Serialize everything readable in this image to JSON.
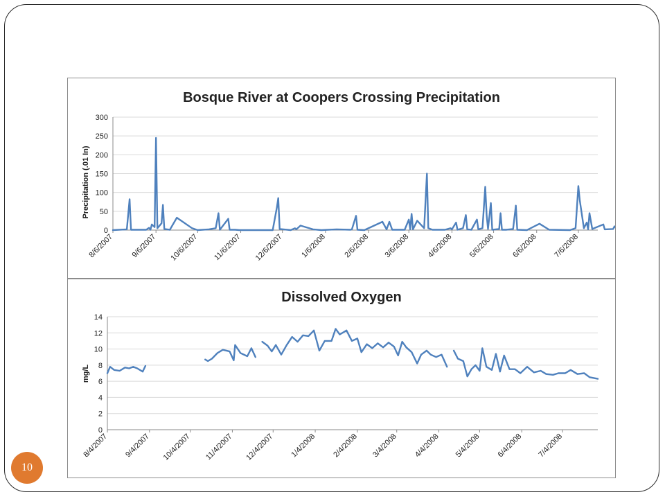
{
  "slide": {
    "page_number": "10"
  },
  "chart_data": [
    {
      "type": "line",
      "title": "Bosque River at Coopers Crossing Precipitation",
      "xlabel": "",
      "ylabel": "Precipitation (.01 In)",
      "ylim": [
        0,
        300
      ],
      "yticks": [
        0,
        50,
        100,
        150,
        200,
        250,
        300
      ],
      "grid": true,
      "legend": "none",
      "color": "#4f81bd",
      "xlim": [
        "2007-08-06",
        "2008-07-20"
      ],
      "x_tick_labels": [
        "8/6/2007",
        "9/6/2007",
        "10/6/2007",
        "11/6/2007",
        "12/6/2007",
        "1/6/2008",
        "2/6/2008",
        "3/6/2008",
        "4/6/2008",
        "5/6/2008",
        "6/6/2008",
        "7/6/2008"
      ],
      "x_tick_dates": [
        "2007-08-06",
        "2007-09-06",
        "2007-10-06",
        "2007-11-06",
        "2007-12-06",
        "2008-01-06",
        "2008-02-06",
        "2008-03-06",
        "2008-04-06",
        "2008-05-06",
        "2008-06-06",
        "2008-07-06"
      ],
      "points": [
        [
          "2007-08-06",
          0
        ],
        [
          "2007-08-16",
          2
        ],
        [
          "2007-08-18",
          82
        ],
        [
          "2007-08-19",
          1
        ],
        [
          "2007-08-30",
          1
        ],
        [
          "2007-09-01",
          6
        ],
        [
          "2007-09-02",
          1
        ],
        [
          "2007-09-03",
          15
        ],
        [
          "2007-09-05",
          8
        ],
        [
          "2007-09-06",
          245
        ],
        [
          "2007-09-07",
          5
        ],
        [
          "2007-09-10",
          18
        ],
        [
          "2007-09-11",
          67
        ],
        [
          "2007-09-12",
          3
        ],
        [
          "2007-09-16",
          1
        ],
        [
          "2007-09-21",
          33
        ],
        [
          "2007-10-02",
          5
        ],
        [
          "2007-10-06",
          0
        ],
        [
          "2007-10-14",
          2
        ],
        [
          "2007-10-19",
          5
        ],
        [
          "2007-10-21",
          45
        ],
        [
          "2007-10-22",
          1
        ],
        [
          "2007-10-28",
          30
        ],
        [
          "2007-10-29",
          1
        ],
        [
          "2007-11-02",
          1
        ],
        [
          "2007-11-05",
          0
        ],
        [
          "2007-11-29",
          0
        ],
        [
          "2007-12-02",
          60
        ],
        [
          "2007-12-03",
          85
        ],
        [
          "2007-12-04",
          3
        ],
        [
          "2007-12-12",
          0
        ],
        [
          "2007-12-15",
          5
        ],
        [
          "2007-12-16",
          2
        ],
        [
          "2007-12-19",
          12
        ],
        [
          "2007-12-28",
          2
        ],
        [
          "2008-01-03",
          0
        ],
        [
          "2008-01-14",
          2
        ],
        [
          "2008-01-24",
          1
        ],
        [
          "2008-01-25",
          2
        ],
        [
          "2008-01-28",
          38
        ],
        [
          "2008-01-29",
          1
        ],
        [
          "2008-02-03",
          0
        ],
        [
          "2008-02-16",
          22
        ],
        [
          "2008-02-19",
          2
        ],
        [
          "2008-02-21",
          22
        ],
        [
          "2008-02-23",
          1
        ],
        [
          "2008-03-03",
          1
        ],
        [
          "2008-03-06",
          28
        ],
        [
          "2008-03-07",
          2
        ],
        [
          "2008-03-08",
          43
        ],
        [
          "2008-03-09",
          2
        ],
        [
          "2008-03-12",
          25
        ],
        [
          "2008-03-17",
          5
        ],
        [
          "2008-03-19",
          150
        ],
        [
          "2008-03-20",
          5
        ],
        [
          "2008-03-23",
          1
        ],
        [
          "2008-04-01",
          1
        ],
        [
          "2008-04-05",
          5
        ],
        [
          "2008-04-06",
          2
        ],
        [
          "2008-04-09",
          20
        ],
        [
          "2008-04-10",
          1
        ],
        [
          "2008-04-14",
          5
        ],
        [
          "2008-04-16",
          40
        ],
        [
          "2008-04-17",
          2
        ],
        [
          "2008-04-20",
          1
        ],
        [
          "2008-04-24",
          28
        ],
        [
          "2008-04-25",
          2
        ],
        [
          "2008-04-28",
          5
        ],
        [
          "2008-04-30",
          115
        ],
        [
          "2008-05-01",
          40
        ],
        [
          "2008-05-02",
          3
        ],
        [
          "2008-05-04",
          72
        ],
        [
          "2008-05-05",
          1
        ],
        [
          "2008-05-10",
          3
        ],
        [
          "2008-05-11",
          45
        ],
        [
          "2008-05-12",
          1
        ],
        [
          "2008-05-15",
          1
        ],
        [
          "2008-05-20",
          3
        ],
        [
          "2008-05-22",
          65
        ],
        [
          "2008-05-23",
          1
        ],
        [
          "2008-05-30",
          0
        ],
        [
          "2008-06-08",
          17
        ],
        [
          "2008-06-15",
          1
        ],
        [
          "2008-06-30",
          0
        ],
        [
          "2008-07-04",
          5
        ],
        [
          "2008-07-06",
          117
        ],
        [
          "2008-07-07",
          80
        ],
        [
          "2008-07-10",
          5
        ],
        [
          "2008-07-12",
          20
        ],
        [
          "2008-07-13",
          2
        ],
        [
          "2008-07-14",
          45
        ],
        [
          "2008-07-16",
          3
        ],
        [
          "2008-07-24",
          15
        ],
        [
          "2008-07-25",
          2
        ],
        [
          "2008-07-31",
          3
        ],
        [
          "2008-08-01",
          10
        ],
        [
          "2008-08-03",
          2
        ]
      ]
    },
    {
      "type": "line",
      "title": "Dissolved Oxygen",
      "xlabel": "",
      "ylabel": "mg/L",
      "ylim": [
        0,
        14
      ],
      "yticks": [
        0,
        2,
        4,
        6,
        8,
        10,
        12,
        14
      ],
      "grid": true,
      "legend": "none",
      "color": "#4f81bd",
      "xlim": [
        "2007-08-04",
        "2008-07-30"
      ],
      "x_tick_labels": [
        "8/4/2007",
        "9/4/2007",
        "10/4/2007",
        "11/4/2007",
        "12/4/2007",
        "1/4/2008",
        "2/4/2008",
        "3/4/2008",
        "4/4/2008",
        "5/4/2008",
        "6/4/2008",
        "7/4/2008"
      ],
      "x_tick_dates": [
        "2007-08-04",
        "2007-09-04",
        "2007-10-04",
        "2007-11-04",
        "2007-12-04",
        "2008-01-04",
        "2008-02-04",
        "2008-03-04",
        "2008-04-04",
        "2008-05-04",
        "2008-06-04",
        "2008-07-04"
      ],
      "segments": [
        [
          [
            "2007-08-04",
            7.0
          ],
          [
            "2007-08-06",
            7.8
          ],
          [
            "2007-08-09",
            7.4
          ],
          [
            "2007-08-13",
            7.3
          ],
          [
            "2007-08-17",
            7.7
          ],
          [
            "2007-08-20",
            7.6
          ],
          [
            "2007-08-23",
            7.8
          ],
          [
            "2007-08-26",
            7.6
          ],
          [
            "2007-08-30",
            7.2
          ],
          [
            "2007-09-01",
            7.9
          ]
        ],
        [
          [
            "2007-10-15",
            8.7
          ],
          [
            "2007-10-17",
            8.5
          ],
          [
            "2007-10-20",
            8.8
          ],
          [
            "2007-10-24",
            9.5
          ],
          [
            "2007-10-28",
            9.9
          ],
          [
            "2007-11-02",
            9.7
          ],
          [
            "2007-11-05",
            8.6
          ],
          [
            "2007-11-06",
            10.5
          ],
          [
            "2007-11-10",
            9.5
          ],
          [
            "2007-11-15",
            9.1
          ],
          [
            "2007-11-18",
            10.1
          ],
          [
            "2007-11-21",
            9.0
          ]
        ],
        [
          [
            "2007-11-26",
            10.9
          ],
          [
            "2007-11-30",
            10.4
          ],
          [
            "2007-12-03",
            9.7
          ],
          [
            "2007-12-06",
            10.5
          ],
          [
            "2007-12-10",
            9.3
          ],
          [
            "2007-12-14",
            10.5
          ],
          [
            "2007-12-18",
            11.5
          ],
          [
            "2007-12-22",
            10.9
          ],
          [
            "2007-12-26",
            11.7
          ],
          [
            "2007-12-30",
            11.6
          ],
          [
            "2008-01-03",
            12.3
          ],
          [
            "2008-01-07",
            9.8
          ],
          [
            "2008-01-11",
            11.0
          ],
          [
            "2008-01-16",
            11.0
          ],
          [
            "2008-01-19",
            12.5
          ],
          [
            "2008-01-22",
            11.8
          ],
          [
            "2008-01-27",
            12.3
          ],
          [
            "2008-01-31",
            11.0
          ],
          [
            "2008-02-04",
            11.3
          ],
          [
            "2008-02-07",
            9.6
          ],
          [
            "2008-02-11",
            10.6
          ],
          [
            "2008-02-15",
            10.1
          ],
          [
            "2008-02-19",
            10.7
          ],
          [
            "2008-02-23",
            10.2
          ],
          [
            "2008-02-27",
            10.8
          ],
          [
            "2008-03-02",
            10.3
          ],
          [
            "2008-03-05",
            9.2
          ],
          [
            "2008-03-08",
            10.9
          ],
          [
            "2008-03-11",
            10.2
          ],
          [
            "2008-03-15",
            9.6
          ],
          [
            "2008-03-19",
            8.2
          ],
          [
            "2008-03-22",
            9.3
          ],
          [
            "2008-03-26",
            9.8
          ],
          [
            "2008-03-29",
            9.3
          ],
          [
            "2008-04-02",
            9.0
          ],
          [
            "2008-04-06",
            9.3
          ],
          [
            "2008-04-10",
            7.8
          ]
        ],
        [
          [
            "2008-04-15",
            9.8
          ],
          [
            "2008-04-18",
            8.8
          ],
          [
            "2008-04-22",
            8.5
          ],
          [
            "2008-04-25",
            6.6
          ],
          [
            "2008-04-28",
            7.5
          ],
          [
            "2008-05-01",
            8.0
          ],
          [
            "2008-05-04",
            7.3
          ],
          [
            "2008-05-06",
            10.1
          ],
          [
            "2008-05-09",
            7.8
          ],
          [
            "2008-05-13",
            7.4
          ],
          [
            "2008-05-16",
            9.4
          ],
          [
            "2008-05-19",
            7.2
          ],
          [
            "2008-05-22",
            9.2
          ],
          [
            "2008-05-26",
            7.5
          ],
          [
            "2008-05-30",
            7.5
          ],
          [
            "2008-06-03",
            7.0
          ],
          [
            "2008-06-08",
            7.8
          ],
          [
            "2008-06-13",
            7.1
          ],
          [
            "2008-06-18",
            7.3
          ],
          [
            "2008-06-22",
            6.9
          ],
          [
            "2008-06-27",
            6.8
          ],
          [
            "2008-07-01",
            7.0
          ],
          [
            "2008-07-06",
            7.0
          ],
          [
            "2008-07-10",
            7.4
          ],
          [
            "2008-07-15",
            6.9
          ],
          [
            "2008-07-20",
            7.0
          ],
          [
            "2008-07-24",
            6.5
          ],
          [
            "2008-07-30",
            6.3
          ]
        ]
      ]
    }
  ]
}
